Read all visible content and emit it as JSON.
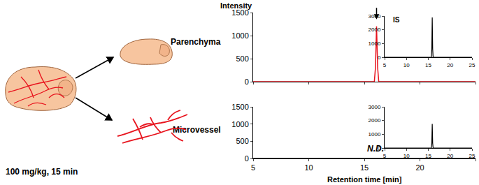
{
  "chart_data": [
    {
      "type": "line",
      "title": "Parenchyma",
      "y_label": "Intensity",
      "xlim": [
        5,
        25
      ],
      "xticks": [
        5,
        10,
        15,
        20,
        25
      ],
      "ylim": [
        0,
        1500
      ],
      "yticks": [
        0,
        500,
        1000,
        1500
      ],
      "tick_labels": "y",
      "series": [
        {
          "color": "#e8141e",
          "x": [
            5,
            15.9,
            16.0,
            16.1,
            16.2,
            16.3,
            25
          ],
          "values": [
            0,
            0,
            300,
            1200,
            300,
            0,
            0
          ]
        }
      ]
    },
    {
      "type": "line",
      "title": "Microvessel",
      "x_label": "Retention time [min]",
      "xlim": [
        5,
        25
      ],
      "xticks": [
        5,
        10,
        15,
        20,
        25
      ],
      "ylim": [
        0,
        1500
      ],
      "yticks": [
        0,
        500,
        1000,
        1500
      ],
      "annotations": [
        {
          "text": "N.D.",
          "x": 16
        }
      ],
      "series": [
        {
          "color": "#000000",
          "x": [
            5,
            25
          ],
          "values": [
            0,
            0
          ]
        }
      ]
    },
    {
      "type": "line",
      "title": "IS",
      "xlim": [
        5,
        25
      ],
      "xticks": [
        5,
        10,
        15,
        20,
        25
      ],
      "ylim": [
        0,
        3000
      ],
      "yticks": [
        0,
        1000,
        2000,
        3000
      ],
      "series": [
        {
          "color": "#000000",
          "x": [
            5,
            15.7,
            15.8,
            15.9,
            16.0,
            16.1,
            25
          ],
          "values": [
            0,
            0,
            600,
            2900,
            600,
            0,
            0
          ]
        }
      ]
    },
    {
      "type": "line",
      "xlim": [
        5,
        25
      ],
      "xticks": [
        5,
        10,
        15,
        20,
        25
      ],
      "ylim": [
        0,
        3000
      ],
      "yticks": [
        0,
        1000,
        2000,
        3000
      ],
      "series": [
        {
          "color": "#000000",
          "x": [
            5,
            15.7,
            15.8,
            15.9,
            16.0,
            16.1,
            25
          ],
          "values": [
            0,
            0,
            350,
            1750,
            350,
            0,
            0
          ]
        }
      ]
    }
  ],
  "illustration": {
    "dose": "100 mg/kg, 15 min"
  }
}
